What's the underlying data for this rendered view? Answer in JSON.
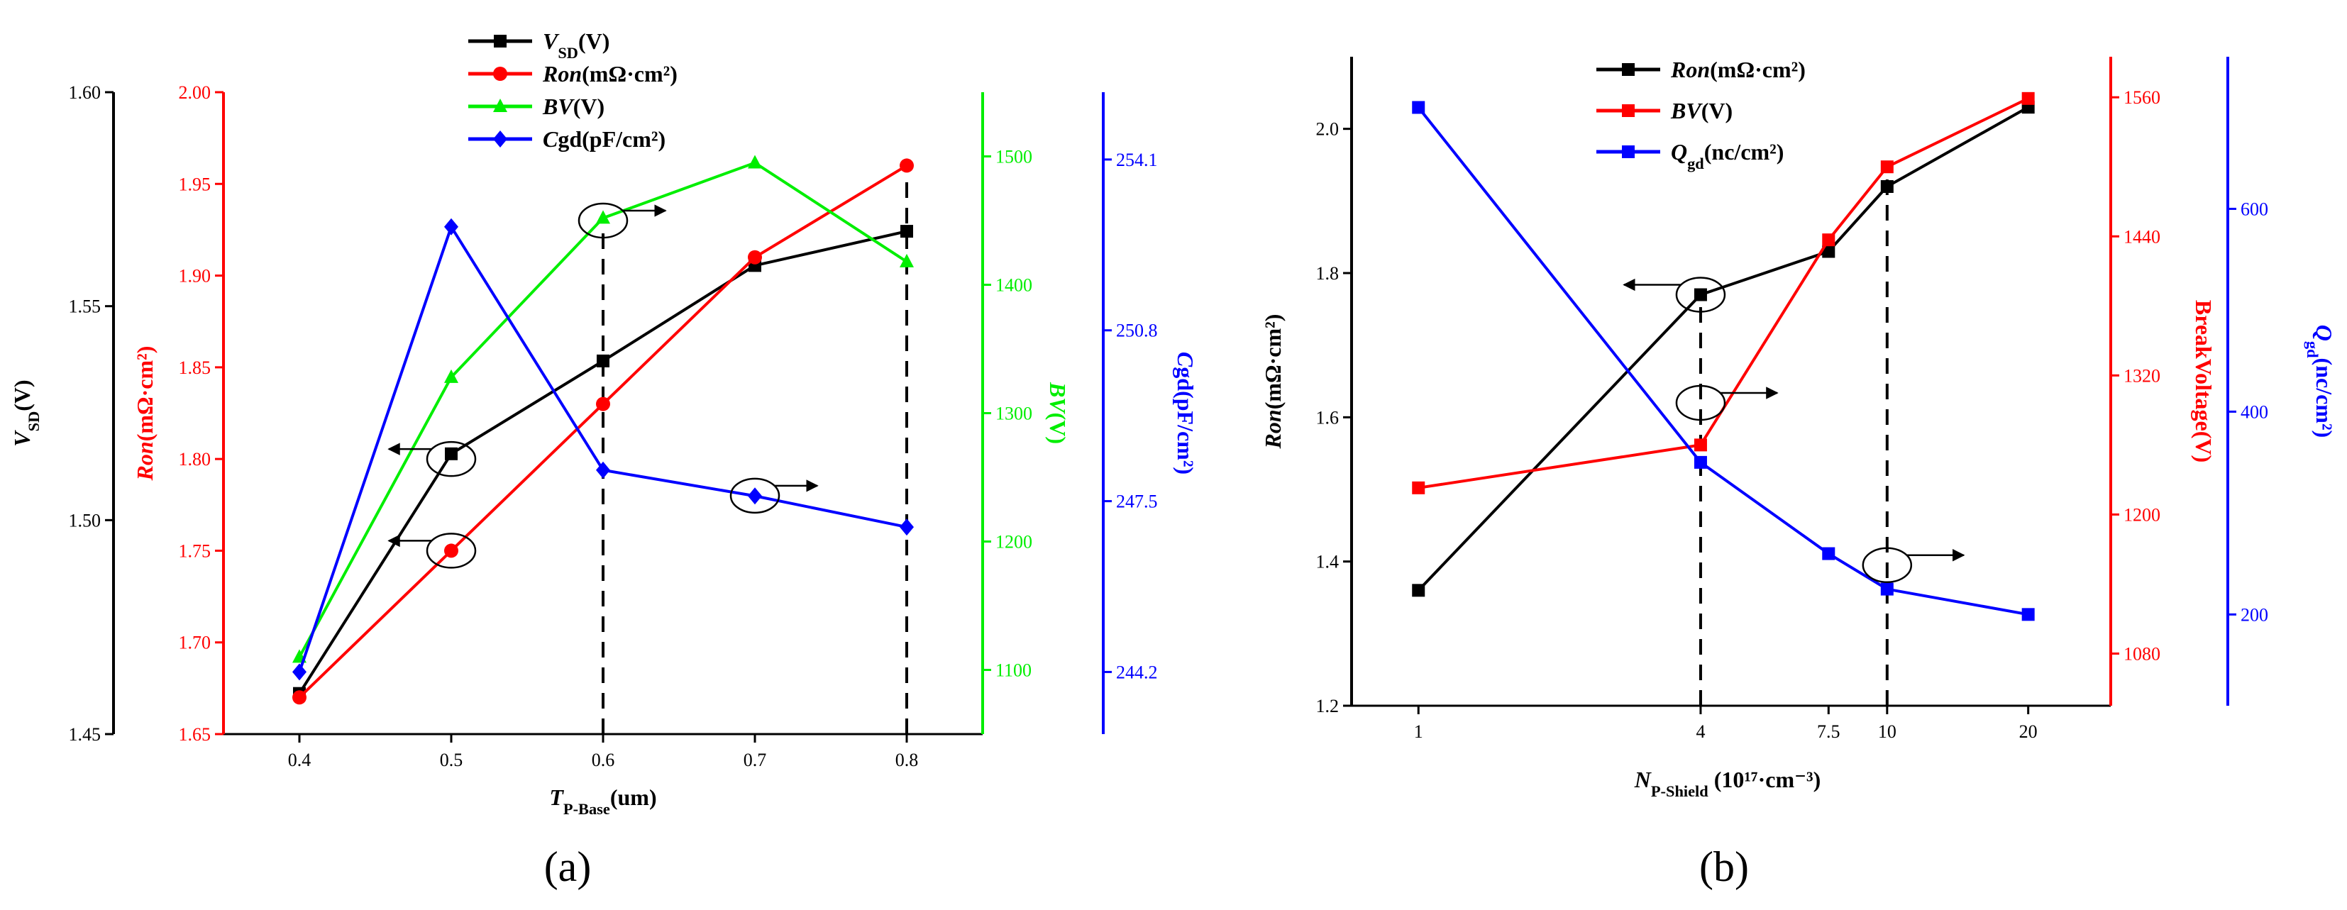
{
  "chart_data": [
    {
      "type": "line",
      "panel_label": "(a)",
      "x": [
        0.4,
        0.5,
        0.6,
        0.7,
        0.8
      ],
      "x_tick_labels": [
        "0.4",
        "0.5",
        "0.6",
        "0.7",
        "0.8"
      ],
      "xlim": [
        0.35,
        0.85
      ],
      "xlabel": {
        "main": "T",
        "sub": "P-Base",
        "rest": "(um)"
      },
      "axes": [
        {
          "key": "vsd",
          "color": "#000000",
          "range": [
            1.45,
            1.6
          ],
          "ticks": [
            "1.45",
            "1.50",
            "1.55",
            "1.60"
          ],
          "label": {
            "italic": "V",
            "sub": "SD",
            "rest": "(V)"
          }
        },
        {
          "key": "ron",
          "color": "#ff0000",
          "range": [
            1.65,
            2.0
          ],
          "ticks": [
            "1.65",
            "1.70",
            "1.75",
            "1.80",
            "1.85",
            "1.90",
            "1.95",
            "2.00"
          ],
          "label": {
            "italic": "Ron",
            "rest": "(mΩ·cm²)"
          }
        },
        {
          "key": "bv",
          "color": "#00ee00",
          "range": [
            1050,
            1550
          ],
          "ticks": [
            "1100",
            "1200",
            "1300",
            "1400",
            "1500"
          ],
          "label": {
            "italic": "BV",
            "rest": "(V)"
          }
        },
        {
          "key": "cgd",
          "color": "#0000ff",
          "range": [
            243.0,
            255.4
          ],
          "ticks": [
            "244.2",
            "247.5",
            "250.8",
            "254.1"
          ],
          "label": {
            "italic": "C",
            "rest": "gd(pF/cm²)"
          }
        }
      ],
      "series": [
        {
          "key": "vsd",
          "legend": {
            "italic": "V",
            "sub": "SD",
            "rest": "(V)"
          },
          "marker": "square",
          "color": "#000000",
          "values": [
            1.4595,
            1.5155,
            1.5372,
            1.5595,
            1.5675
          ]
        },
        {
          "key": "ron",
          "legend": {
            "italic": "Ron",
            "rest": "(mΩ·cm²)"
          },
          "marker": "circle",
          "color": "#ff0000",
          "values": [
            1.67,
            1.75,
            1.83,
            1.91,
            1.96
          ]
        },
        {
          "key": "bv",
          "legend": {
            "italic": "BV",
            "rest": "(V)"
          },
          "marker": "triangle",
          "color": "#00ee00",
          "values": [
            1110,
            1328,
            1452,
            1495,
            1418
          ]
        },
        {
          "key": "cgd",
          "legend": {
            "italic": "C",
            "rest": "gd(pF/cm²)"
          },
          "marker": "diamond",
          "color": "#0000ff",
          "values": [
            244.2,
            252.8,
            248.1,
            247.6,
            247.0
          ]
        }
      ],
      "dashed_x": [
        0.6,
        0.8
      ],
      "annotations": [
        {
          "x": 0.5,
          "axis": "ron",
          "y": 1.8,
          "arrow": "left",
          "series": "vsd"
        },
        {
          "x": 0.5,
          "axis": "ron",
          "y": 1.75,
          "arrow": "left",
          "series": "ron"
        },
        {
          "x": 0.6,
          "axis": "ron",
          "y": 1.93,
          "arrow": "right",
          "series": "bv"
        },
        {
          "x": 0.7,
          "axis": "ron",
          "y": 1.78,
          "arrow": "right",
          "series": "cgd"
        }
      ]
    },
    {
      "type": "line",
      "panel_label": "(b)",
      "x_scale": "log",
      "x": [
        1,
        4,
        7.5,
        10,
        20
      ],
      "x_tick_labels": [
        "1",
        "4",
        "7.5",
        "10",
        "20"
      ],
      "xlim": [
        0.72,
        30
      ],
      "xlabel": {
        "main": "N",
        "sub": "P-Shield",
        "rest": " (10¹⁷·cm⁻³)"
      },
      "axes": [
        {
          "key": "ron",
          "color": "#000000",
          "range": [
            1.2,
            2.1
          ],
          "ticks": [
            "1.2",
            "1.4",
            "1.6",
            "1.8",
            "2.0"
          ],
          "label": {
            "italic": "Ron",
            "rest": "(mΩ·cm²)"
          }
        },
        {
          "key": "bv",
          "color": "#ff0000",
          "range": [
            1035,
            1595
          ],
          "ticks": [
            "1080",
            "1200",
            "1320",
            "1440",
            "1560"
          ],
          "label": {
            "rest": "BreakVoltage(V)"
          }
        },
        {
          "key": "qgd",
          "color": "#0000ff",
          "range": [
            110,
            750
          ],
          "ticks": [
            "200",
            "400",
            "600"
          ],
          "label": {
            "italic": "Q",
            "sub": "gd",
            "rest": "(nc/cm²)"
          }
        }
      ],
      "series": [
        {
          "key": "ron",
          "legend": {
            "italic": "Ron",
            "rest": "(mΩ·cm²)"
          },
          "marker": "square",
          "color": "#000000",
          "values": [
            1.36,
            1.77,
            1.83,
            1.92,
            2.03
          ]
        },
        {
          "key": "bv",
          "legend": {
            "italic": "BV",
            "rest": "(V)"
          },
          "marker": "square",
          "color": "#ff0000",
          "values": [
            1223,
            1260,
            1437,
            1500,
            1559
          ]
        },
        {
          "key": "qgd",
          "legend": {
            "italic": "Q",
            "sub": "gd",
            "rest": "(nc/cm²)"
          },
          "marker": "square",
          "color": "#0000ff",
          "values": [
            700,
            350,
            260,
            225,
            200
          ]
        }
      ],
      "dashed_x": [
        4,
        10
      ],
      "annotations": [
        {
          "x": 4,
          "axis": "ron",
          "y": 1.77,
          "arrow": "left",
          "series": "ron"
        },
        {
          "x": 4,
          "axis": "ron",
          "y": 1.62,
          "arrow": "right",
          "series": "bv"
        },
        {
          "x": 10,
          "axis": "ron",
          "y": 1.395,
          "arrow": "right",
          "series": "qgd"
        }
      ]
    }
  ]
}
